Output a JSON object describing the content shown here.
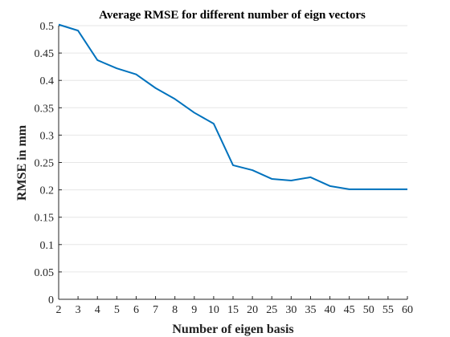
{
  "chart_data": {
    "type": "line",
    "title": "Average RMSE for different number of eign vectors",
    "xlabel": "Number of eigen basis",
    "ylabel": "RMSE in mm",
    "categories": [
      "2",
      "3",
      "4",
      "5",
      "6",
      "7",
      "8",
      "9",
      "10",
      "15",
      "20",
      "25",
      "30",
      "35",
      "40",
      "45",
      "50",
      "55",
      "60"
    ],
    "series": [
      {
        "values": [
          0.502,
          0.491,
          0.437,
          0.422,
          0.411,
          0.386,
          0.366,
          0.341,
          0.321,
          0.245,
          0.236,
          0.22,
          0.217,
          0.223,
          0.207,
          0.201,
          0.201,
          0.201,
          0.201
        ]
      }
    ],
    "ylim": [
      0,
      0.5
    ],
    "yticks": [
      "0",
      "0.05",
      "0.1",
      "0.15",
      "0.2",
      "0.25",
      "0.3",
      "0.35",
      "0.4",
      "0.45",
      "0.5"
    ],
    "grid": "horizontal",
    "line_color": "#0072BD"
  }
}
